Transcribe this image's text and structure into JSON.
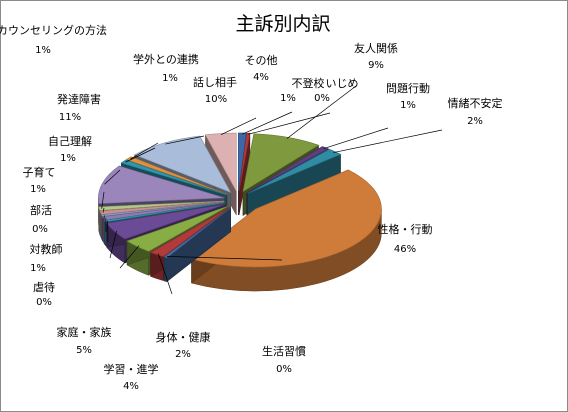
{
  "chart_data": {
    "type": "pie",
    "title": "主訴別内訳",
    "three_d": true,
    "exploded": true,
    "legend": "none",
    "slices": [
      {
        "label": "不登校",
        "value_label": "1%",
        "value": 1,
        "color": "#3d68a8"
      },
      {
        "label": "いじめ",
        "value_label": "0%",
        "value": 0.4,
        "color": "#b33a3a"
      },
      {
        "label": "友人関係",
        "value_label": "9%",
        "value": 9,
        "color": "#7f9a3e"
      },
      {
        "label": "問題行動",
        "value_label": "1%",
        "value": 1,
        "color": "#5d3f80"
      },
      {
        "label": "情緒不安定",
        "value_label": "2%",
        "value": 2,
        "color": "#2f8ca3"
      },
      {
        "label": "性格・行動",
        "value_label": "46%",
        "value": 46,
        "color": "#cf7c3a"
      },
      {
        "label": "生活習慣",
        "value_label": "0%",
        "value": 0.4,
        "color": "#4a6fa5"
      },
      {
        "label": "身体・健康",
        "value_label": "2%",
        "value": 2,
        "color": "#b13a3a"
      },
      {
        "label": "学習・進学",
        "value_label": "4%",
        "value": 4,
        "color": "#88ad45"
      },
      {
        "label": "家庭・家族",
        "value_label": "5%",
        "value": 5,
        "color": "#6b4a96"
      },
      {
        "label": "虐待",
        "value_label": "0%",
        "value": 0.4,
        "color": "#3a9bb0"
      },
      {
        "label": "対教師",
        "value_label": "1%",
        "value": 1,
        "color": "#8e7bb5"
      },
      {
        "label": "部活",
        "value_label": "0%",
        "value": 0.4,
        "color": "#90a7c9"
      },
      {
        "label": "子育て",
        "value_label": "1%",
        "value": 1,
        "color": "#c69090"
      },
      {
        "label": "自己理解",
        "value_label": "1%",
        "value": 1,
        "color": "#b3c98b"
      },
      {
        "label": "発達障害",
        "value_label": "11%",
        "value": 11,
        "color": "#9a86bb"
      },
      {
        "label": "カウンセリングの方法",
        "value_label": "1%",
        "value": 1,
        "color": "#2f95b0"
      },
      {
        "label": "学外との連携",
        "value_label": "1%",
        "value": 1,
        "color": "#e0913f"
      },
      {
        "label": "話し相手",
        "value_label": "10%",
        "value": 10,
        "color": "#a9bcd9"
      },
      {
        "label": "その他",
        "value_label": "4%",
        "value": 4,
        "color": "#ddb1b1"
      }
    ]
  }
}
